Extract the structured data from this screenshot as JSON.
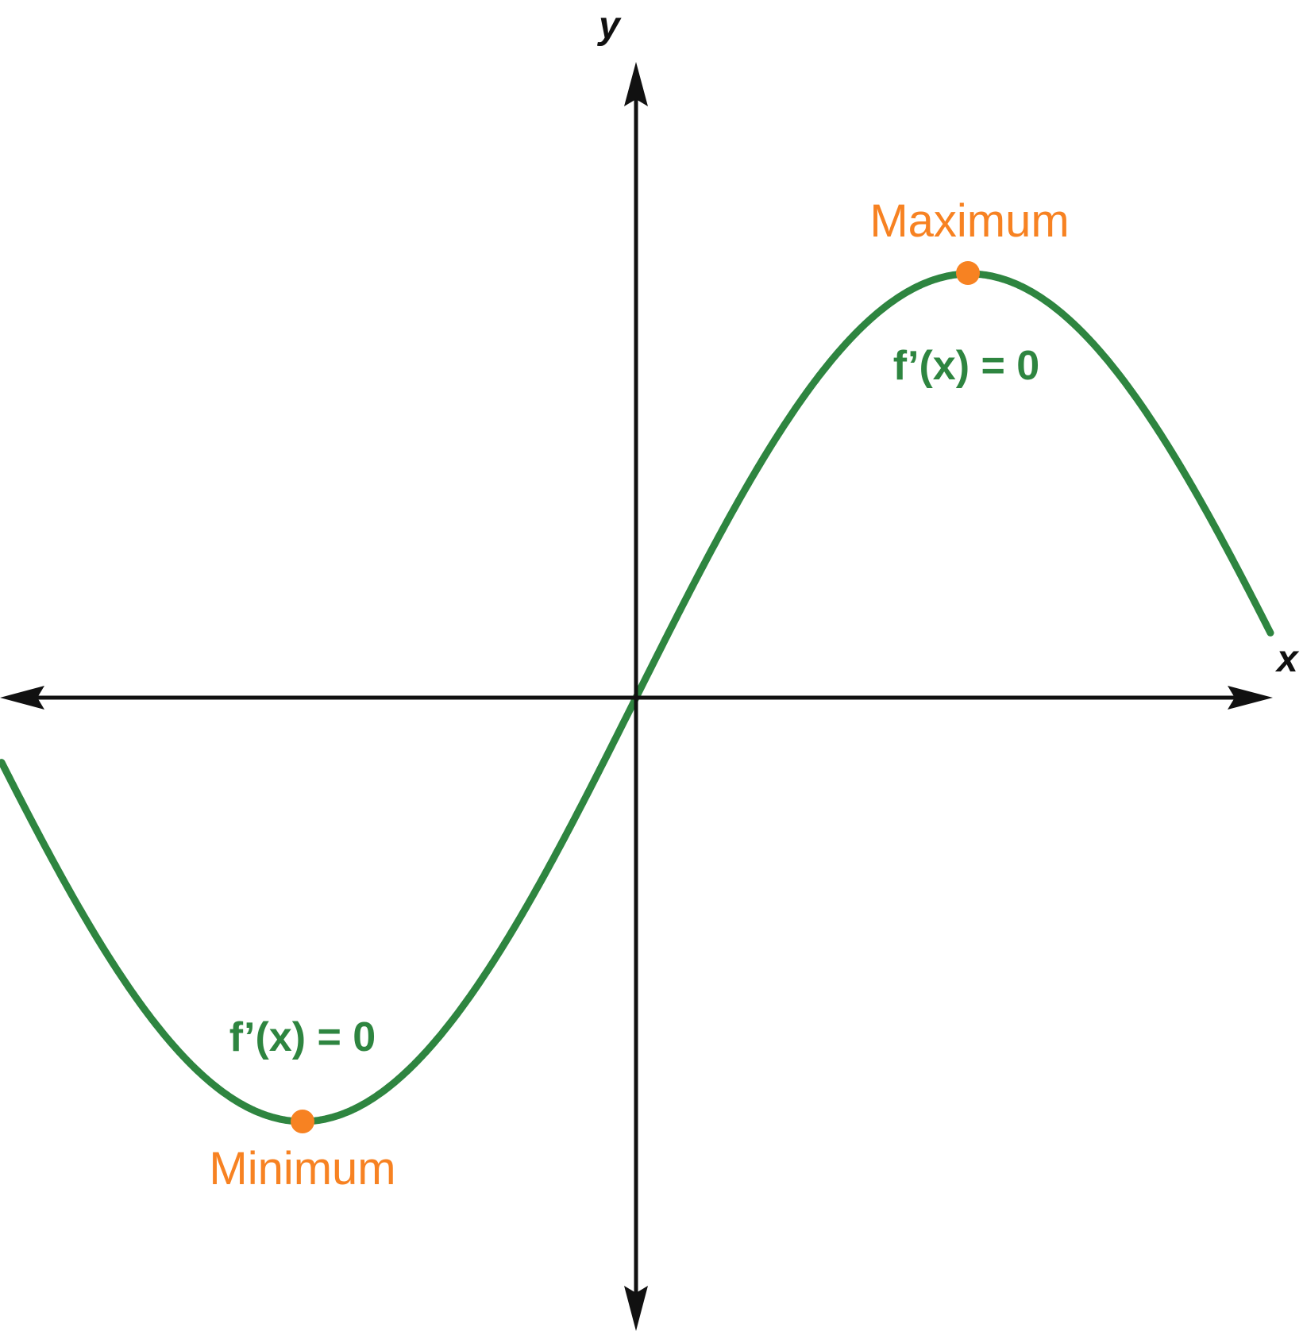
{
  "axes": {
    "x_label": "x",
    "y_label": "y"
  },
  "curve": {
    "color": "#2e8540"
  },
  "points": {
    "color": "#f78222",
    "maximum": {
      "label": "Maximum",
      "derivative_text": "f’(x) = 0"
    },
    "minimum": {
      "label": "Minimum",
      "derivative_text": "f’(x) = 0"
    }
  }
}
